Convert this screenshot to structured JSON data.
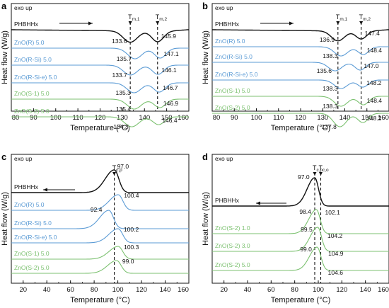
{
  "colors": {
    "black": "#111111",
    "blue": "#5b9bd5",
    "green": "#7cc170"
  },
  "chart_data": [
    {
      "type": "line",
      "panel_label": "a",
      "exo_label": "exo up",
      "xlabel": "Temperature (°C)",
      "ylabel": "Heat flow (W/g)",
      "xlim": [
        80,
        160
      ],
      "xticks": [
        80,
        90,
        100,
        110,
        120,
        130,
        140,
        150,
        160
      ],
      "grid": false,
      "arrow_direction": "right",
      "vlines": [
        {
          "x": 133.6,
          "label_main": "T",
          "label_sub": "m,1"
        },
        {
          "x": 145.9,
          "label_main": "T",
          "label_sub": "m,2"
        }
      ],
      "series": [
        {
          "name": "PHBHHx",
          "color": "black",
          "peaks": [
            {
              "x": 133.6,
              "label": "133.6"
            },
            {
              "x": 145.9,
              "label": "145.9"
            }
          ]
        },
        {
          "name": "ZnO(R) 5.0",
          "color": "blue",
          "peaks": [
            {
              "x": 135.7,
              "label": "135.7"
            },
            {
              "x": 147.1,
              "label": "147.1"
            }
          ]
        },
        {
          "name": "ZnO(R-Si) 5.0",
          "color": "blue",
          "peaks": [
            {
              "x": 133.7,
              "label": "133.7"
            },
            {
              "x": 146.1,
              "label": "146.1"
            }
          ]
        },
        {
          "name": "ZnO(R-Si-e) 5.0",
          "color": "blue",
          "peaks": [
            {
              "x": 135.3,
              "label": "135.3"
            },
            {
              "x": 146.7,
              "label": "146.7"
            }
          ]
        },
        {
          "name": "ZnO(S-1) 5.0",
          "color": "green",
          "peaks": [
            {
              "x": 135.4,
              "label": "135.4"
            },
            {
              "x": 146.9,
              "label": "146.9"
            }
          ]
        },
        {
          "name": "ZnO(S-2) 5.0",
          "color": "green",
          "peaks": [
            {
              "x": 134.3,
              "label": "134.3"
            },
            {
              "x": 146.4,
              "label": "146.4"
            }
          ]
        }
      ]
    },
    {
      "type": "line",
      "panel_label": "b",
      "exo_label": "exo up",
      "xlabel": "Temperature (°C)",
      "ylabel": "Heat flow (W/g)",
      "xlim": [
        80,
        160
      ],
      "xticks": [
        80,
        90,
        100,
        110,
        120,
        130,
        140,
        150,
        160
      ],
      "grid": false,
      "arrow_direction": "right",
      "vlines": [
        {
          "x": 136.9,
          "label_main": "T",
          "label_sub": "m,1"
        },
        {
          "x": 147.4,
          "label_main": "T",
          "label_sub": "m,2"
        }
      ],
      "series": [
        {
          "name": "PHBHHx",
          "color": "black",
          "peaks": [
            {
              "x": 136.9,
              "label": "136.9"
            },
            {
              "x": 147.4,
              "label": "147.4"
            }
          ]
        },
        {
          "name": "ZnO(R) 5.0",
          "color": "blue",
          "peaks": [
            {
              "x": 138.3,
              "label": "138.3"
            },
            {
              "x": 148.4,
              "label": "148.4"
            }
          ]
        },
        {
          "name": "ZnO(R-Si) 5.0",
          "color": "blue",
          "peaks": [
            {
              "x": 135.6,
              "label": "135.6"
            },
            {
              "x": 147.0,
              "label": "147.0"
            }
          ]
        },
        {
          "name": "ZnO(R-Si-e) 5.0",
          "color": "blue",
          "peaks": [
            {
              "x": 138.3,
              "label": "138.3"
            },
            {
              "x": 148.2,
              "label": "148.2"
            }
          ]
        },
        {
          "name": "ZnO(S-1) 5.0",
          "color": "green",
          "peaks": [
            {
              "x": 138.3,
              "label": "138.3"
            },
            {
              "x": 148.4,
              "label": "148.4"
            }
          ]
        },
        {
          "name": "ZnO(S-2) 5.0",
          "color": "green",
          "peaks": [
            {
              "x": 137.8,
              "label": "137.8"
            },
            {
              "x": 148.2,
              "label": "148.2"
            }
          ]
        }
      ]
    },
    {
      "type": "line",
      "panel_label": "c",
      "exo_label": "exo up",
      "xlabel": "Temperature (°C)",
      "ylabel": "Heat flow (W/g)",
      "xlim": [
        10,
        160
      ],
      "xticks": [
        20,
        40,
        60,
        80,
        100,
        120,
        140,
        160
      ],
      "grid": false,
      "arrow_direction": "left",
      "vlines": [
        {
          "x": 97.0,
          "label_main": "T",
          "label_sub": "c,p"
        }
      ],
      "series": [
        {
          "name": "PHBHHx",
          "color": "black",
          "peaks": [
            {
              "x": 97.0,
              "label": "97.0"
            }
          ]
        },
        {
          "name": "ZnO(R) 5.0",
          "color": "blue",
          "peaks": [
            {
              "x": 100.4,
              "label": "100.4"
            }
          ]
        },
        {
          "name": "ZnO(R-Si) 5.0",
          "color": "blue",
          "peaks": [
            {
              "x": 92.4,
              "label": "92.4"
            }
          ]
        },
        {
          "name": "ZnO(R-Si-e) 5.0",
          "color": "blue",
          "peaks": [
            {
              "x": 100.2,
              "label": "100.2"
            }
          ]
        },
        {
          "name": "ZnO(S-1) 5.0",
          "color": "green",
          "peaks": [
            {
              "x": 100.3,
              "label": "100.3"
            }
          ]
        },
        {
          "name": "ZnO(S-2) 5.0",
          "color": "green",
          "peaks": [
            {
              "x": 99.0,
              "label": "99.0"
            }
          ]
        }
      ]
    },
    {
      "type": "line",
      "panel_label": "d",
      "exo_label": "exo up",
      "xlabel": "Temperature (°C)",
      "ylabel": "Heat flow (W/g)",
      "xlim": [
        10,
        160
      ],
      "xticks": [
        20,
        40,
        60,
        80,
        100,
        120,
        140,
        160
      ],
      "grid": false,
      "arrow_direction": "left",
      "vlines": [
        {
          "x": 97.0,
          "label_main": "T",
          "label_sub": "c,p"
        },
        {
          "x": 102.1,
          "label_main": "T",
          "label_sub": "c,o"
        }
      ],
      "series": [
        {
          "name": "PHBHHx",
          "color": "black",
          "peaks": [
            {
              "x": 97.0,
              "label": "97.0"
            },
            {
              "x": 102.1,
              "label": "102.1"
            }
          ]
        },
        {
          "name": "ZnO(S-2) 1.0",
          "color": "green",
          "peaks": [
            {
              "x": 98.4,
              "label": "98.4"
            },
            {
              "x": 104.2,
              "label": "104.2"
            }
          ]
        },
        {
          "name": "ZnO(S-2) 3.0",
          "color": "green",
          "peaks": [
            {
              "x": 99.5,
              "label": "99.5"
            },
            {
              "x": 104.9,
              "label": "104.9"
            }
          ]
        },
        {
          "name": "ZnO(S-2) 5.0",
          "color": "green",
          "peaks": [
            {
              "x": 99.0,
              "label": "99.0"
            },
            {
              "x": 104.6,
              "label": "104.6"
            }
          ]
        }
      ]
    }
  ]
}
